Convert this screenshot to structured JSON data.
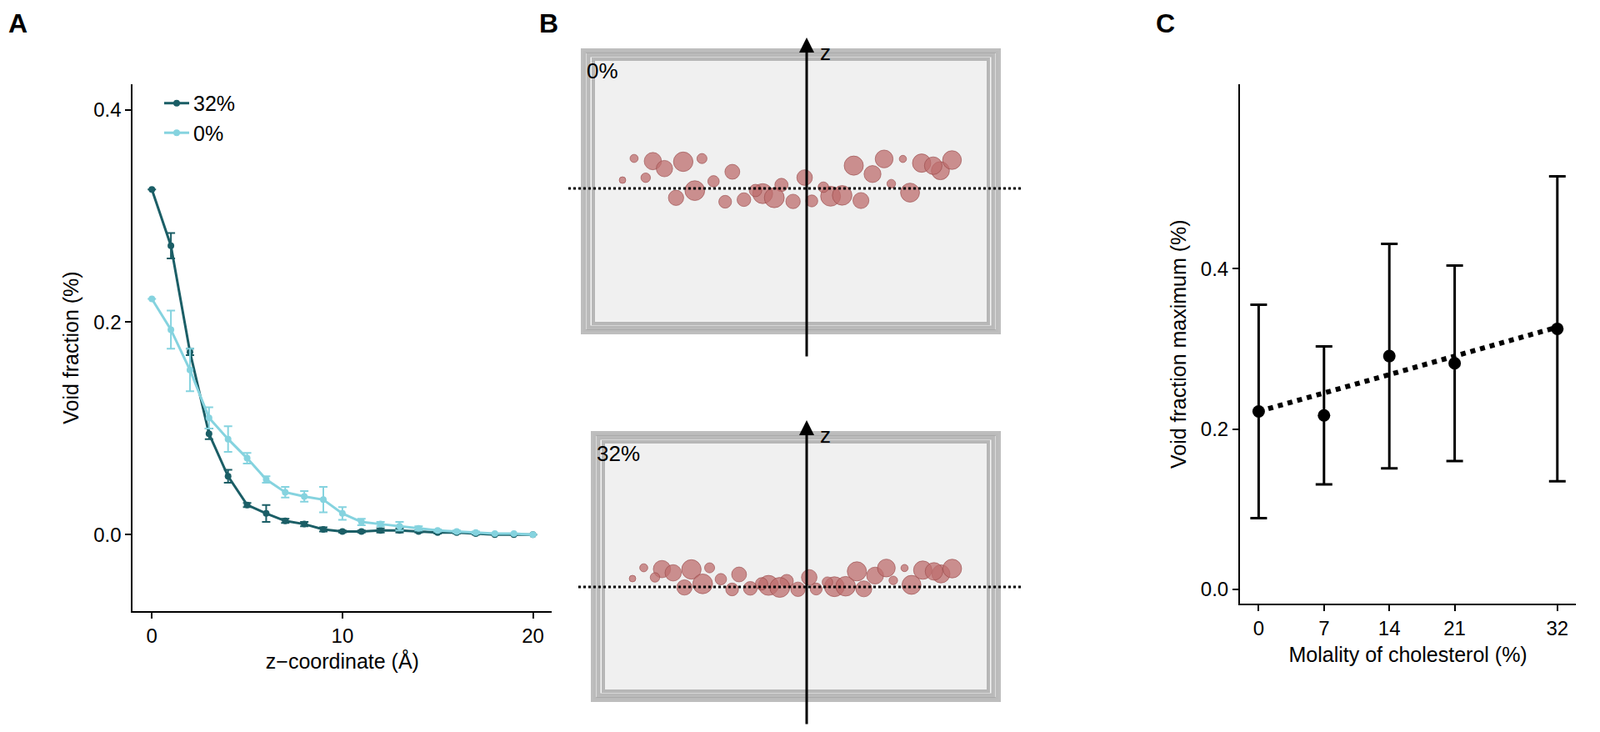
{
  "chart_data": [
    {
      "type": "line",
      "title": "A",
      "x": [
        0,
        1,
        2,
        3,
        4,
        5,
        6,
        7,
        8,
        9,
        10,
        11,
        12,
        13,
        14,
        15,
        16,
        17,
        18,
        19,
        20
      ],
      "series": [
        {
          "name": "32%",
          "color": "#1b5e66",
          "values": [
            0.325,
            0.272,
            0.172,
            0.095,
            0.055,
            0.028,
            0.02,
            0.013,
            0.01,
            0.005,
            0.003,
            0.003,
            0.004,
            0.004,
            0.003,
            0.002,
            0.002,
            0.001,
            0.0,
            0.0,
            0.0
          ],
          "errors": [
            null,
            0.012,
            0.003,
            0.005,
            0.006,
            0.002,
            0.008,
            0.002,
            0.002,
            0.002,
            0.001,
            0.001,
            0.002,
            0.002,
            0.001,
            0.001,
            0.001,
            0.001,
            null,
            null,
            null
          ]
        },
        {
          "name": "0%",
          "color": "#85d3df",
          "values": [
            0.222,
            0.193,
            0.155,
            0.11,
            0.09,
            0.072,
            0.052,
            0.04,
            0.036,
            0.033,
            0.02,
            0.012,
            0.01,
            0.008,
            0.006,
            0.004,
            0.003,
            0.002,
            0.001,
            0.001,
            0.0
          ],
          "errors": [
            null,
            0.018,
            0.02,
            0.01,
            0.012,
            0.005,
            0.003,
            0.005,
            0.005,
            0.012,
            0.006,
            0.003,
            0.002,
            0.004,
            0.002,
            0.001,
            0.001,
            0.001,
            null,
            null,
            null
          ]
        }
      ],
      "x_label": "z−coordinate (Å)",
      "y_label": "Void fraction (%)",
      "xlim": [
        -1,
        21
      ],
      "xticks": [
        0,
        10,
        20
      ],
      "ylim": [
        -0.072,
        0.424
      ],
      "yticks": [
        {
          "value": 0,
          "label": "0.0"
        },
        {
          "value": 0.2,
          "label": "0.2"
        },
        {
          "value": 0.4,
          "label": "0.4"
        }
      ],
      "legend": "top left",
      "marker": "circle"
    },
    {
      "type": "scatter",
      "title": "C",
      "x": [
        0,
        7,
        14,
        21,
        32
      ],
      "values": [
        0.222,
        0.217,
        0.291,
        0.282,
        0.325
      ],
      "errors": [
        0.133,
        0.086,
        0.14,
        0.122,
        0.19
      ],
      "color": "#000000",
      "marker": "circle",
      "fit": {
        "x": [
          0,
          32
        ],
        "values": [
          0.222,
          0.327
        ],
        "line_style": "dotted"
      },
      "x_label": "Molality of cholesterol (%)",
      "y_label": "Void fraction maximum (%)",
      "xlim": [
        -2,
        34
      ],
      "xticks": [
        0,
        7,
        14,
        21,
        32
      ],
      "ylim": [
        -0.018,
        0.63
      ],
      "yticks": [
        {
          "value": 0,
          "label": "0.0"
        },
        {
          "value": 0.2,
          "label": "0.2"
        },
        {
          "value": 0.4,
          "label": "0.4"
        }
      ]
    }
  ],
  "panel_b": {
    "title": "B",
    "panels": [
      {
        "label": "0%"
      },
      {
        "label": "32%"
      }
    ],
    "axis_label": "z"
  }
}
